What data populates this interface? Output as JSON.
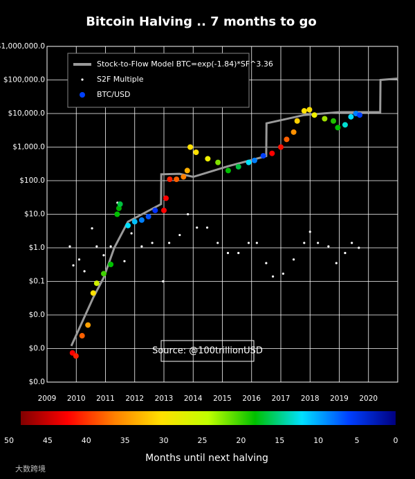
{
  "chart_data": {
    "type": "line",
    "title": "Bitcoin Halving .. 7 months to go",
    "annotation": "Source: @100trillionUSD",
    "log_y": true,
    "grid": true,
    "legend": "upper left",
    "xlim": [
      2009,
      2021
    ],
    "xticks": [
      2009,
      2010,
      2011,
      2012,
      2013,
      2014,
      2015,
      2016,
      2017,
      2018,
      2019,
      2020
    ],
    "ylim": [
      0.0001,
      1000000
    ],
    "yticks": [
      {
        "value": 0.0001,
        "label": "$0.0"
      },
      {
        "value": 0.001,
        "label": "$0.0"
      },
      {
        "value": 0.01,
        "label": "$0.0"
      },
      {
        "value": 0.1,
        "label": "$0.1"
      },
      {
        "value": 1,
        "label": "$1.0"
      },
      {
        "value": 10,
        "label": "$10.0"
      },
      {
        "value": 100,
        "label": "$100.0"
      },
      {
        "value": 1000,
        "label": "$1,000.0"
      },
      {
        "value": 10000,
        "label": "$10,000.0"
      },
      {
        "value": 100000,
        "label": "$100,000.0"
      },
      {
        "value": 1000000,
        "label": "$1,000,000.0"
      }
    ],
    "series": [
      {
        "name": "Stock-to-Flow Model BTC=exp(-1.84)*SF^3.36",
        "type": "line",
        "color": "#9a9a9a",
        "x": [
          2009.83,
          2010.58,
          2010.94,
          2011.3,
          2011.77,
          2012.9,
          2012.91,
          2013.54,
          2014.0,
          2015.2,
          2016.5,
          2016.51,
          2017.8,
          2019.0,
          2020.4,
          2020.41,
          2021.0
        ],
        "values": [
          0.0012,
          0.033,
          0.13,
          1,
          6,
          20,
          155,
          160,
          130,
          270,
          540,
          5100,
          9000,
          11000,
          11000,
          100000,
          110000
        ]
      },
      {
        "name": "S2F Multiple",
        "type": "scatter",
        "color": "#ffffff",
        "size": 1.6,
        "x": [
          2009.78,
          2009.9,
          2010.1,
          2010.28,
          2010.54,
          2010.7,
          2010.94,
          2011.18,
          2011.41,
          2011.65,
          2011.89,
          2012.24,
          2012.6,
          2012.97,
          2013.18,
          2013.54,
          2013.82,
          2014.13,
          2014.48,
          2014.84,
          2015.19,
          2015.55,
          2015.9,
          2016.18,
          2016.5,
          2016.73,
          2017.08,
          2017.44,
          2017.8,
          2018.0,
          2018.27,
          2018.63,
          2018.9,
          2019.2,
          2019.43,
          2019.67
        ],
        "values": [
          1.1,
          0.3,
          0.45,
          0.2,
          3.8,
          1.1,
          0.6,
          1.1,
          22,
          0.4,
          2.7,
          1.1,
          1.4,
          0.1,
          1.4,
          2.4,
          10,
          4,
          4,
          1.4,
          0.7,
          0.7,
          1.4,
          1.4,
          0.35,
          0.14,
          0.17,
          0.45,
          1.4,
          3,
          1.4,
          1.1,
          0.35,
          0.7,
          1.4,
          1
        ]
      },
      {
        "name": "BTC/USD",
        "type": "scatter",
        "color": "#0040ff",
        "size": 4,
        "x": [
          2009.87,
          2009.99,
          2010.2,
          2010.4,
          2010.58,
          2010.7,
          2010.94,
          2011.18,
          2011.4,
          2011.46,
          2011.5,
          2011.77,
          2012.0,
          2012.24,
          2012.47,
          2012.7,
          2013.0,
          2013.07,
          2013.2,
          2013.43,
          2013.67,
          2013.8,
          2013.9,
          2014.1,
          2014.5,
          2014.85,
          2015.2,
          2015.55,
          2015.9,
          2016.1,
          2016.4,
          2016.7,
          2017.0,
          2017.2,
          2017.44,
          2017.56,
          2017.8,
          2017.98,
          2018.15,
          2018.5,
          2018.8,
          2018.95,
          2019.2,
          2019.4,
          2019.57,
          2019.7
        ],
        "values": [
          0.00074,
          0.0006,
          0.0024,
          0.005,
          0.045,
          0.088,
          0.17,
          0.32,
          10,
          15,
          20,
          4.6,
          6,
          6.7,
          8.5,
          13,
          13,
          30,
          110,
          110,
          130,
          200,
          1000,
          700,
          450,
          350,
          200,
          260,
          350,
          400,
          550,
          650,
          1000,
          1700,
          2800,
          6000,
          12000,
          13000,
          9000,
          7000,
          6000,
          3800,
          4600,
          8000,
          10000,
          9000
        ],
        "colors": [
          "#ff0000",
          "#ff2000",
          "#ff6000",
          "#ffa000",
          "#ffe000",
          "#d0f000",
          "#40d000",
          "#00c000",
          "#00c000",
          "#00b000",
          "#00c040",
          "#00e0ff",
          "#00c0ff",
          "#0080ff",
          "#0050ff",
          "#0030ff",
          "#ff0000",
          "#ff0000",
          "#ff2000",
          "#ff6000",
          "#ff8000",
          "#ffb000",
          "#ffe000",
          "#ffe000",
          "#f0f000",
          "#80e000",
          "#00c000",
          "#00c040",
          "#00e0ff",
          "#0080ff",
          "#0040ff",
          "#ff0000",
          "#ff1000",
          "#ff6000",
          "#ff9000",
          "#ffd000",
          "#ffe000",
          "#ffe000",
          "#f0f000",
          "#a0e000",
          "#20c000",
          "#00c000",
          "#00e0d0",
          "#00e0ff",
          "#0080ff",
          "#0040ff"
        ]
      }
    ],
    "colorbar": {
      "label": "Months until next halving",
      "lim": [
        50,
        0
      ],
      "ticks": [
        50,
        45,
        40,
        35,
        30,
        25,
        20,
        15,
        10,
        5,
        0
      ],
      "colors": [
        "#800000",
        "#ff0000",
        "#ff8000",
        "#ffe000",
        "#c0ff00",
        "#00c000",
        "#00e0ff",
        "#0040ff",
        "#000080"
      ]
    },
    "watermark": "大数跨境"
  }
}
